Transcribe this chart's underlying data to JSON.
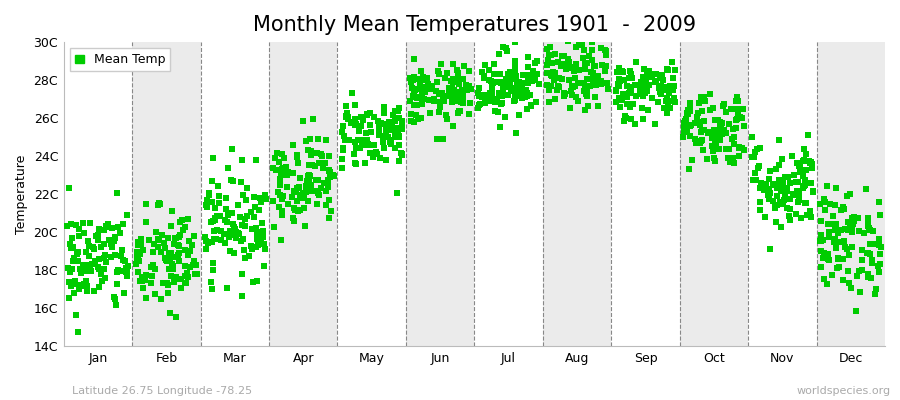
{
  "title": "Monthly Mean Temperatures 1901  -  2009",
  "ylabel": "Temperature",
  "ylim": [
    14,
    30
  ],
  "ytick_values": [
    14,
    16,
    18,
    20,
    22,
    24,
    26,
    28,
    30
  ],
  "ytick_labels": [
    "14C",
    "16C",
    "18C",
    "20C",
    "22C",
    "24C",
    "26C",
    "28C",
    "30C"
  ],
  "month_labels": [
    "Jan",
    "Feb",
    "Mar",
    "Apr",
    "May",
    "Jun",
    "Jul",
    "Aug",
    "Sep",
    "Oct",
    "Nov",
    "Dec"
  ],
  "marker_color": "#00cc00",
  "marker": "s",
  "marker_size": 4,
  "legend_label": "Mean Temp",
  "bottom_left_text": "Latitude 26.75 Longitude -78.25",
  "bottom_right_text": "worldspecies.org",
  "background_color": "#ffffff",
  "band_colors": [
    "#ffffff",
    "#ebebeb"
  ],
  "title_fontsize": 15,
  "axis_label_fontsize": 9,
  "tick_fontsize": 9,
  "annotation_fontsize": 8,
  "num_years": 109,
  "monthly_means": [
    18.5,
    18.5,
    20.5,
    22.8,
    25.2,
    27.2,
    27.8,
    28.2,
    27.5,
    25.5,
    22.5,
    19.5
  ],
  "monthly_stds": [
    1.4,
    1.4,
    1.4,
    1.2,
    0.9,
    0.8,
    0.9,
    0.9,
    0.8,
    1.0,
    1.2,
    1.4
  ],
  "seed": 42,
  "figwidth": 9.0,
  "figheight": 4.0,
  "dpi": 100
}
